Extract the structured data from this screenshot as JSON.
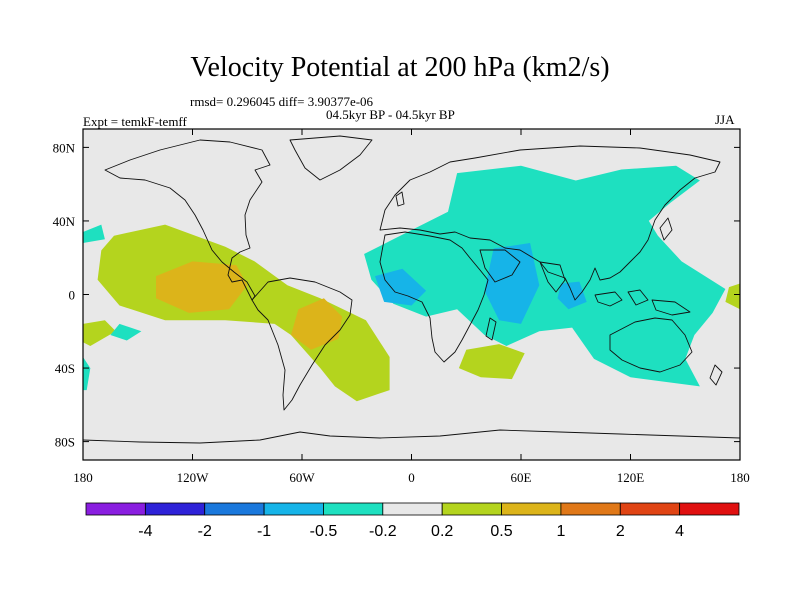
{
  "header": {
    "title": "Velocity Potential at 200 hPa (km2/s)",
    "rmsd_line": "rmsd= 0.296045 diff= 3.90377e-06",
    "period_line": "04.5kyr BP - 04.5kyr BP",
    "experiment_line": "Expt = temkF-temff",
    "season": "JJA"
  },
  "chart_data": {
    "type": "heatmap",
    "projection": "cylindrical equidistant",
    "x_ticks": [
      "180",
      "120W",
      "60W",
      "0",
      "60E",
      "120E",
      "180"
    ],
    "x_tick_values": [
      -180,
      -120,
      -60,
      0,
      60,
      120,
      180
    ],
    "y_ticks": [
      "80N",
      "40N",
      "0",
      "40S",
      "80S"
    ],
    "y_tick_values": [
      80,
      40,
      0,
      -40,
      -80
    ],
    "xlim": [
      -180,
      180
    ],
    "ylim": [
      -90,
      90
    ],
    "colorbar": {
      "labels": [
        "-4",
        "-2",
        "-1",
        "-0.5",
        "-0.2",
        "0.2",
        "0.5",
        "1",
        "2",
        "4"
      ],
      "colors": [
        "#8a1ee0",
        "#2e22d8",
        "#1a78dc",
        "#16b4e8",
        "#1ee0c0",
        "#e8e8e8",
        "#b4d41e",
        "#dcb41a",
        "#e07818",
        "#e04414",
        "#e01010"
      ]
    },
    "regions": [
      {
        "level": "0.2 to 0.5",
        "color": "#b4d41e",
        "points": [
          [
            -163,
            32
          ],
          [
            -135,
            38
          ],
          [
            -102,
            26
          ],
          [
            -86,
            18
          ],
          [
            -68,
            5
          ],
          [
            -50,
            -2
          ],
          [
            -25,
            -14
          ],
          [
            -12,
            -34
          ],
          [
            -12,
            -52
          ],
          [
            -30,
            -58
          ],
          [
            -42,
            -50
          ],
          [
            -50,
            -40
          ],
          [
            -66,
            -22
          ],
          [
            -75,
            -16
          ],
          [
            -102,
            -14
          ],
          [
            -135,
            -14
          ],
          [
            -160,
            -6
          ],
          [
            -172,
            8
          ],
          [
            -170,
            24
          ]
        ]
      },
      {
        "level": "0.2 to 0.5",
        "color": "#b4d41e",
        "points": [
          [
            30,
            -30
          ],
          [
            48,
            -27
          ],
          [
            62,
            -32
          ],
          [
            55,
            -46
          ],
          [
            38,
            -45
          ],
          [
            26,
            -40
          ]
        ]
      },
      {
        "level": "0.2 to 0.5",
        "color": "#b4d41e",
        "points": [
          [
            -180,
            -16
          ],
          [
            -168,
            -14
          ],
          [
            -162,
            -20
          ],
          [
            -176,
            -28
          ],
          [
            -180,
            -26
          ]
        ]
      },
      {
        "level": "0.2 to 0.5",
        "color": "#b4d41e",
        "points": [
          [
            180,
            6
          ],
          [
            174,
            4
          ],
          [
            172,
            -4
          ],
          [
            180,
            -8
          ]
        ]
      },
      {
        "level": "0.5 to 1",
        "color": "#dcb41a",
        "points": [
          [
            -140,
            10
          ],
          [
            -120,
            18
          ],
          [
            -96,
            16
          ],
          [
            -90,
            5
          ],
          [
            -100,
            -8
          ],
          [
            -122,
            -10
          ],
          [
            -140,
            -2
          ]
        ]
      },
      {
        "level": "0.5 to 1",
        "color": "#dcb41a",
        "points": [
          [
            -62,
            -8
          ],
          [
            -48,
            -2
          ],
          [
            -38,
            -12
          ],
          [
            -40,
            -24
          ],
          [
            -55,
            -30
          ],
          [
            -66,
            -22
          ]
        ]
      },
      {
        "level": "-0.5 to -0.2",
        "color": "#1ee0c0",
        "points": [
          [
            -10,
            30
          ],
          [
            20,
            45
          ],
          [
            25,
            66
          ],
          [
            60,
            70
          ],
          [
            90,
            62
          ],
          [
            115,
            68
          ],
          [
            145,
            70
          ],
          [
            158,
            62
          ],
          [
            142,
            50
          ],
          [
            130,
            40
          ],
          [
            135,
            32
          ],
          [
            148,
            18
          ],
          [
            172,
            3
          ],
          [
            165,
            -10
          ],
          [
            155,
            -22
          ],
          [
            150,
            -35
          ],
          [
            158,
            -50
          ],
          [
            120,
            -45
          ],
          [
            100,
            -35
          ],
          [
            88,
            -18
          ],
          [
            70,
            -20
          ],
          [
            52,
            -28
          ],
          [
            40,
            -22
          ],
          [
            25,
            -8
          ],
          [
            8,
            -12
          ],
          [
            -10,
            -5
          ],
          [
            -22,
            8
          ],
          [
            -26,
            22
          ]
        ]
      },
      {
        "level": "-0.5 to -0.2",
        "color": "#1ee0c0",
        "points": [
          [
            -180,
            34
          ],
          [
            -170,
            38
          ],
          [
            -168,
            30
          ],
          [
            -180,
            28
          ]
        ]
      },
      {
        "level": "-0.5 to -0.2",
        "color": "#1ee0c0",
        "points": [
          [
            -180,
            -34
          ],
          [
            -176,
            -40
          ],
          [
            -178,
            -52
          ],
          [
            -180,
            -52
          ]
        ]
      },
      {
        "level": "-0.5 to -0.2",
        "color": "#1ee0c0",
        "points": [
          [
            -160,
            -16
          ],
          [
            -148,
            -20
          ],
          [
            -156,
            -25
          ],
          [
            -165,
            -22
          ]
        ]
      },
      {
        "level": "-1 to -0.5",
        "color": "#16b4e8",
        "points": [
          [
            -20,
            10
          ],
          [
            -5,
            14
          ],
          [
            8,
            2
          ],
          [
            0,
            -6
          ],
          [
            -15,
            -4
          ]
        ]
      },
      {
        "level": "-1 to -0.5",
        "color": "#16b4e8",
        "points": [
          [
            45,
            25
          ],
          [
            65,
            28
          ],
          [
            70,
            5
          ],
          [
            60,
            -16
          ],
          [
            48,
            -14
          ],
          [
            40,
            2
          ]
        ]
      },
      {
        "level": "-1 to -0.5",
        "color": "#16b4e8",
        "points": [
          [
            82,
            6
          ],
          [
            92,
            7
          ],
          [
            96,
            -4
          ],
          [
            86,
            -8
          ],
          [
            80,
            -2
          ]
        ]
      }
    ]
  }
}
